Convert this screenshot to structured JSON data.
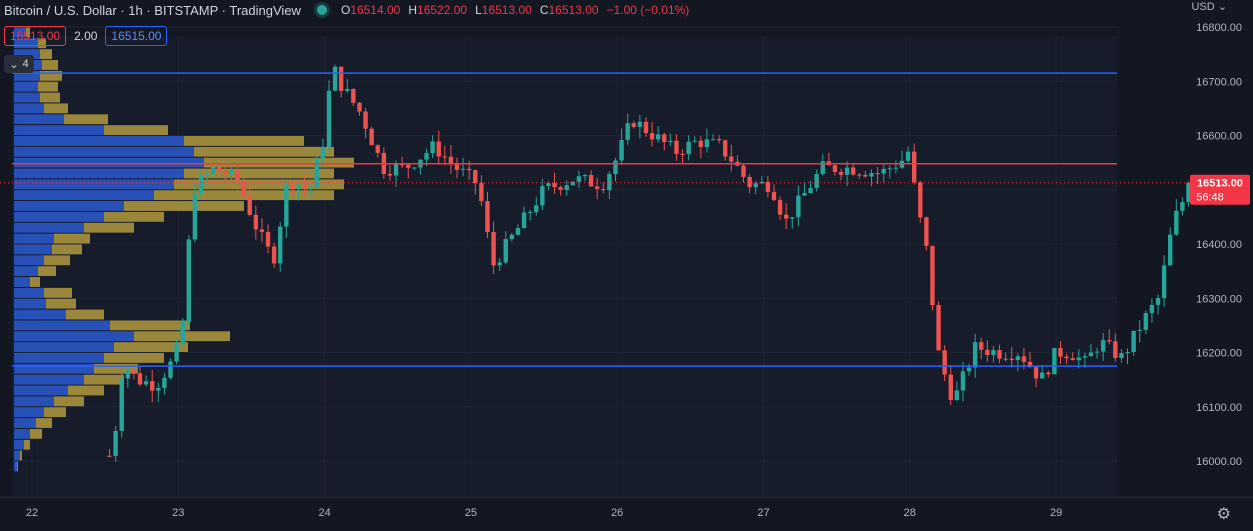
{
  "header": {
    "title": "Bitcoin / U.S. Dollar · 1h · BITSTAMP · TradingView",
    "ohlc": [
      {
        "k": "O",
        "v": "16514.00"
      },
      {
        "k": "H",
        "v": "16522.00"
      },
      {
        "k": "L",
        "v": "16513.00"
      },
      {
        "k": "C",
        "v": "16513.00"
      }
    ],
    "change": "−1.00 (−0.01%)"
  },
  "order_panel": {
    "sell_price": "16513.00",
    "spread": "2.00",
    "buy_price": "16515.00"
  },
  "indicator_toggle": {
    "icon": "chevron-down-icon",
    "count": "4"
  },
  "currency_label": "USD",
  "settings_icon": "gear-icon",
  "colors": {
    "bg": "#131722",
    "up": "#26a69a",
    "down": "#ef5350",
    "hline_blue": "#2962ff",
    "hline_red": "#f23645",
    "vp_up": "#2c5ad1",
    "vp_down": "#b29a3f"
  },
  "chart_data": {
    "type": "candlestick",
    "timeframe": "1h",
    "ylim": [
      15950,
      16800
    ],
    "y_ticks": [
      16000,
      16100,
      16200,
      16300,
      16400,
      16500,
      16600,
      16700,
      16800
    ],
    "x_ticks": [
      "22",
      "23",
      "24",
      "25",
      "26",
      "27",
      "28",
      "29"
    ],
    "last_price": {
      "value": 16513.0,
      "label": "16513.00",
      "countdown": "56:48"
    },
    "horizontal_lines": [
      {
        "price": 16715,
        "color": "#2962ff"
      },
      {
        "price": 16548,
        "color": "#f23645"
      },
      {
        "price": 16175,
        "color": "#2962ff"
      }
    ],
    "candles_anchor": [
      [
        0.0,
        16000
      ],
      [
        0.55,
        16010
      ],
      [
        0.62,
        16180
      ],
      [
        0.72,
        16150
      ],
      [
        0.85,
        16140
      ],
      [
        0.95,
        16180
      ],
      [
        1.02,
        16220
      ],
      [
        1.1,
        16500
      ],
      [
        1.25,
        16540
      ],
      [
        1.4,
        16520
      ],
      [
        1.55,
        16420
      ],
      [
        1.65,
        16370
      ],
      [
        1.75,
        16520
      ],
      [
        1.9,
        16500
      ],
      [
        2.0,
        16600
      ],
      [
        2.05,
        16730
      ],
      [
        2.12,
        16690
      ],
      [
        2.25,
        16640
      ],
      [
        2.4,
        16540
      ],
      [
        2.55,
        16540
      ],
      [
        2.75,
        16580
      ],
      [
        2.9,
        16540
      ],
      [
        3.05,
        16510
      ],
      [
        3.15,
        16360
      ],
      [
        3.3,
        16420
      ],
      [
        3.5,
        16500
      ],
      [
        3.7,
        16520
      ],
      [
        3.9,
        16510
      ],
      [
        4.0,
        16560
      ],
      [
        4.1,
        16630
      ],
      [
        4.25,
        16600
      ],
      [
        4.4,
        16570
      ],
      [
        4.55,
        16590
      ],
      [
        4.7,
        16580
      ],
      [
        4.8,
        16550
      ],
      [
        4.9,
        16510
      ],
      [
        5.05,
        16510
      ],
      [
        5.15,
        16440
      ],
      [
        5.25,
        16480
      ],
      [
        5.4,
        16540
      ],
      [
        5.6,
        16540
      ],
      [
        5.8,
        16530
      ],
      [
        5.95,
        16555
      ],
      [
        6.0,
        16575
      ],
      [
        6.05,
        16460
      ],
      [
        6.1,
        16420
      ],
      [
        6.2,
        16190
      ],
      [
        6.3,
        16110
      ],
      [
        6.45,
        16210
      ],
      [
        6.6,
        16200
      ],
      [
        6.75,
        16200
      ],
      [
        6.9,
        16150
      ],
      [
        7.0,
        16200
      ],
      [
        7.1,
        16200
      ],
      [
        7.2,
        16180
      ],
      [
        7.3,
        16220
      ],
      [
        7.45,
        16190
      ],
      [
        7.6,
        16260
      ],
      [
        7.7,
        16300
      ],
      [
        7.8,
        16440
      ],
      [
        7.9,
        16500
      ],
      [
        8.0,
        16500
      ],
      [
        8.05,
        16513
      ]
    ],
    "volume_profile_bins": [
      {
        "price": 16790,
        "up": 12,
        "down": 4
      },
      {
        "price": 16770,
        "up": 24,
        "down": 8
      },
      {
        "price": 16750,
        "up": 26,
        "down": 12
      },
      {
        "price": 16730,
        "up": 28,
        "down": 16
      },
      {
        "price": 16710,
        "up": 26,
        "down": 22
      },
      {
        "price": 16690,
        "up": 24,
        "down": 20
      },
      {
        "price": 16670,
        "up": 26,
        "down": 20
      },
      {
        "price": 16650,
        "up": 30,
        "down": 24
      },
      {
        "price": 16630,
        "up": 50,
        "down": 44
      },
      {
        "price": 16610,
        "up": 90,
        "down": 64
      },
      {
        "price": 16590,
        "up": 170,
        "down": 120
      },
      {
        "price": 16570,
        "up": 180,
        "down": 140
      },
      {
        "price": 16550,
        "up": 190,
        "down": 150
      },
      {
        "price": 16530,
        "up": 170,
        "down": 150
      },
      {
        "price": 16510,
        "up": 160,
        "down": 170
      },
      {
        "price": 16490,
        "up": 140,
        "down": 180
      },
      {
        "price": 16470,
        "up": 110,
        "down": 120
      },
      {
        "price": 16450,
        "up": 90,
        "down": 60
      },
      {
        "price": 16430,
        "up": 70,
        "down": 50
      },
      {
        "price": 16410,
        "up": 40,
        "down": 36
      },
      {
        "price": 16390,
        "up": 38,
        "down": 30
      },
      {
        "price": 16370,
        "up": 30,
        "down": 26
      },
      {
        "price": 16350,
        "up": 24,
        "down": 18
      },
      {
        "price": 16330,
        "up": 16,
        "down": 10
      },
      {
        "price": 16310,
        "up": 30,
        "down": 28
      },
      {
        "price": 16290,
        "up": 32,
        "down": 30
      },
      {
        "price": 16270,
        "up": 52,
        "down": 38
      },
      {
        "price": 16250,
        "up": 96,
        "down": 80
      },
      {
        "price": 16230,
        "up": 120,
        "down": 96
      },
      {
        "price": 16210,
        "up": 100,
        "down": 74
      },
      {
        "price": 16190,
        "up": 90,
        "down": 60
      },
      {
        "price": 16170,
        "up": 80,
        "down": 44
      },
      {
        "price": 16150,
        "up": 70,
        "down": 40
      },
      {
        "price": 16130,
        "up": 54,
        "down": 36
      },
      {
        "price": 16110,
        "up": 40,
        "down": 30
      },
      {
        "price": 16090,
        "up": 30,
        "down": 22
      },
      {
        "price": 16070,
        "up": 22,
        "down": 16
      },
      {
        "price": 16050,
        "up": 16,
        "down": 12
      },
      {
        "price": 16030,
        "up": 10,
        "down": 6
      },
      {
        "price": 16010,
        "up": 6,
        "down": 2
      },
      {
        "price": 15990,
        "up": 3,
        "down": 1
      }
    ]
  }
}
